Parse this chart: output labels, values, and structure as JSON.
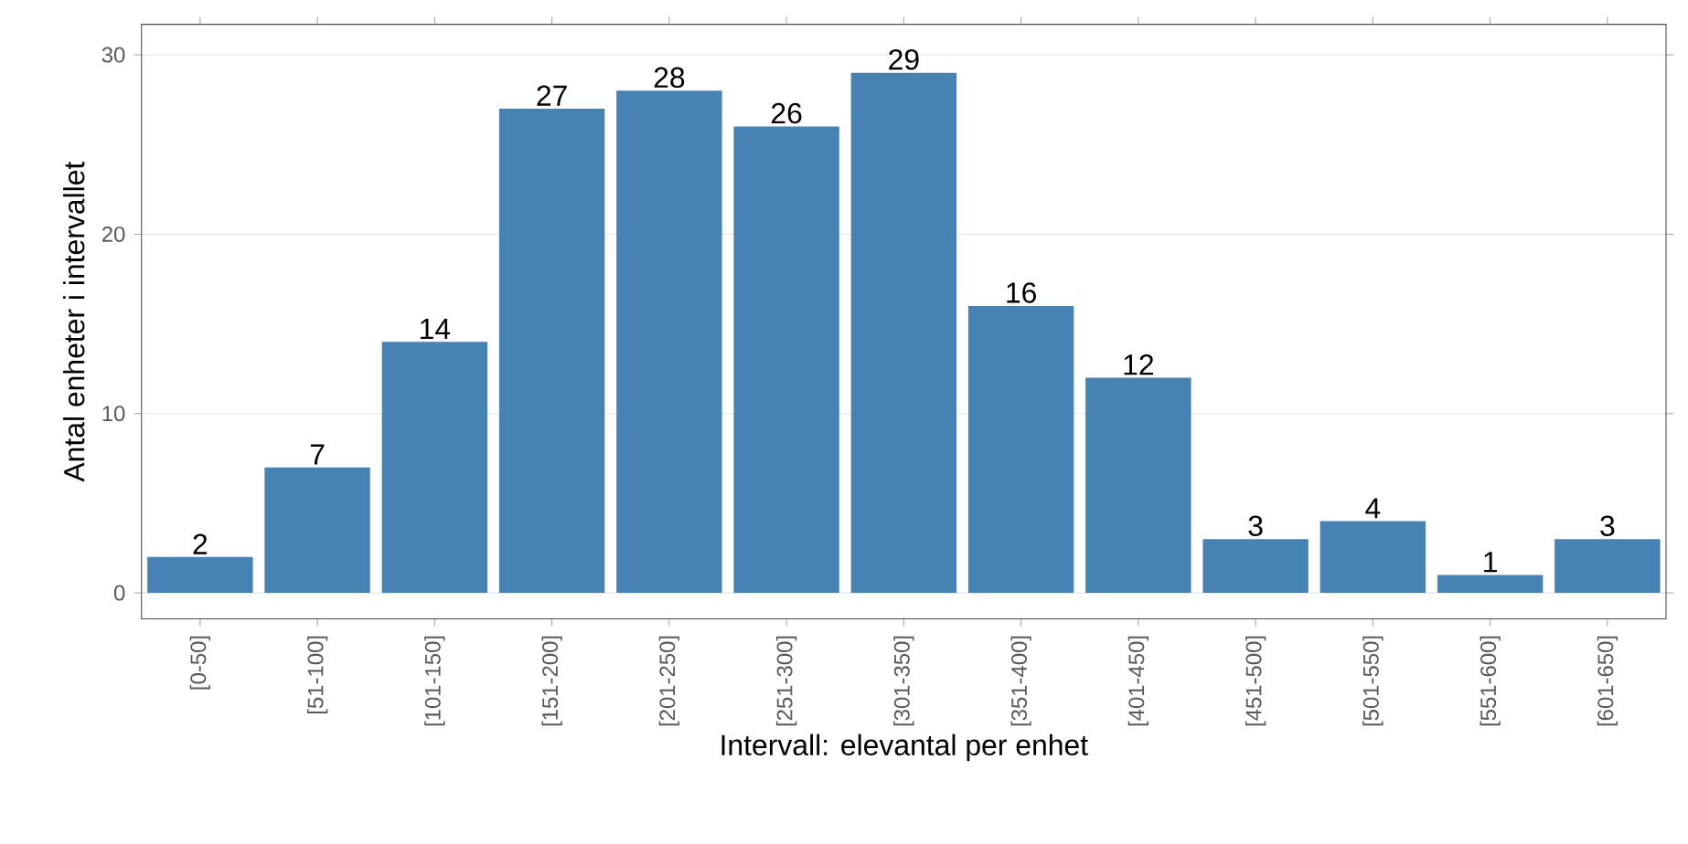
{
  "chart_data": {
    "type": "bar",
    "xlabel": "Intervall: elevantal per enhet",
    "ylabel": "Antal enheter i intervallet",
    "categories": [
      "[0-50]",
      "[51-100]",
      "[101-150]",
      "[151-200]",
      "[201-250]",
      "[251-300]",
      "[301-350]",
      "[351-400]",
      "[401-450]",
      "[451-500]",
      "[501-550]",
      "[551-600]",
      "[601-650]"
    ],
    "values": [
      2,
      7,
      14,
      27,
      28,
      26,
      29,
      16,
      12,
      3,
      4,
      1,
      3
    ],
    "color": "#4682b4",
    "ylim": [
      -1.45,
      31.7
    ],
    "yticks": [
      0,
      10,
      20,
      30
    ],
    "grid": "y",
    "data_labels": true
  }
}
